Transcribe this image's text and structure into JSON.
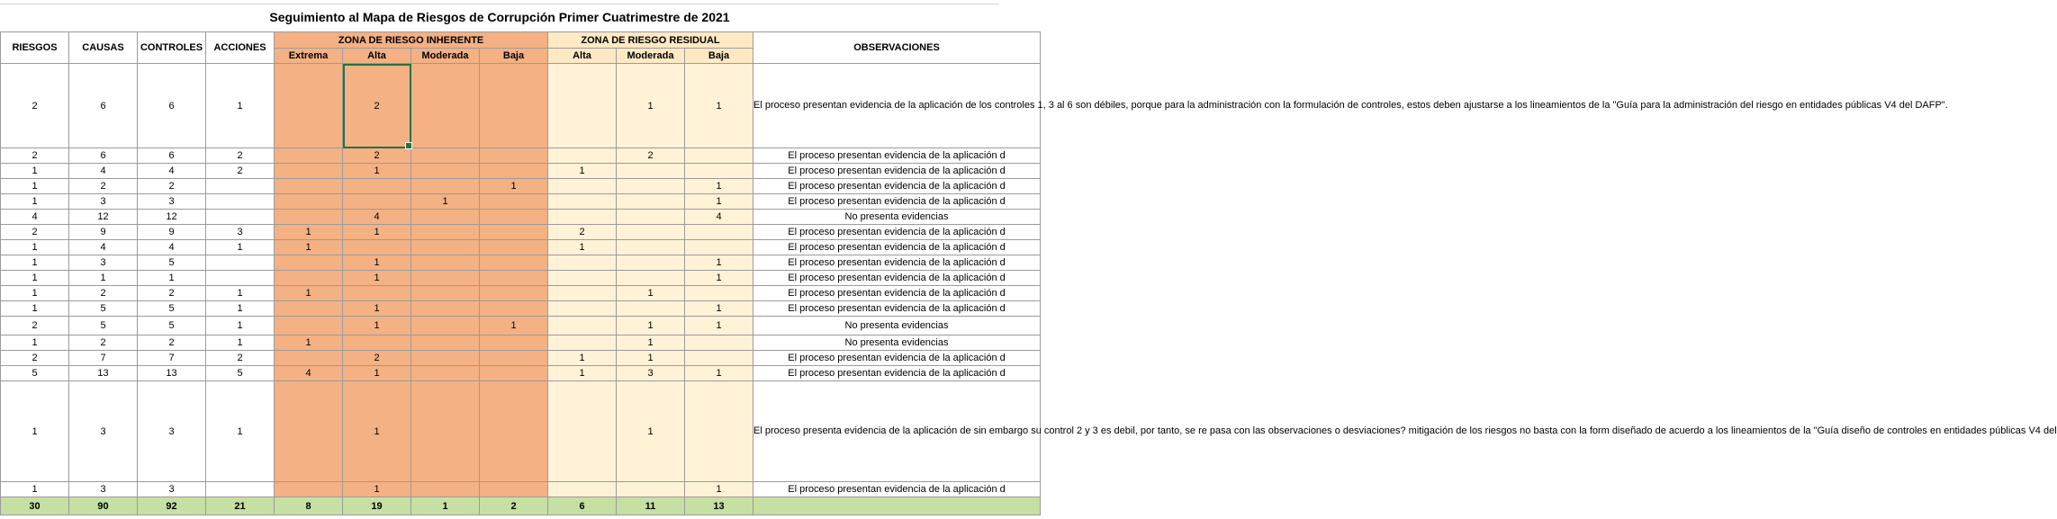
{
  "sheet": {
    "title": "Seguimiento al Mapa de Riesgos de Corrupción Primer Cuatrimestre de 2021",
    "headers": {
      "riesgos": "RIESGOS",
      "causas": "CAUSAS",
      "controles": "CONTROLES",
      "acciones": "ACCIONES",
      "zona_inherente": "ZONA DE RIESGO INHERENTE",
      "zona_residual": "ZONA DE RIESGO RESIDUAL",
      "observaciones": "OBSERVACIONES",
      "inh_extrema": "Extrema",
      "inh_alta": "Alta",
      "inh_moderada": "Moderada",
      "inh_baja": "Baja",
      "res_alta": "Alta",
      "res_moderada": "Moderada",
      "res_baja": "Baja"
    },
    "colors": {
      "inherent": "#f4b183",
      "residual": "#fff2d6",
      "totals": "#c6dfa3",
      "selection": "#217346"
    },
    "rows": [
      [
        "2",
        "6",
        "6",
        "1",
        "",
        "2",
        "",
        "",
        "",
        "1",
        "1",
        "El proceso presentan evidencia de la aplicación de los controles 1, 3 al 6 son débiles, porque para la administración con la formulación de controles, estos deben ajustarse a los lineamientos de la \"Guía para la administración del riesgo en entidades públicas V4 del DAFP\"."
      ],
      [
        "2",
        "6",
        "6",
        "2",
        "",
        "2",
        "",
        "",
        "",
        "2",
        "",
        "El proceso presentan evidencia de la aplicación d"
      ],
      [
        "1",
        "4",
        "4",
        "2",
        "",
        "1",
        "",
        "",
        "1",
        "",
        "",
        "El proceso presentan evidencia de la aplicación d"
      ],
      [
        "1",
        "2",
        "2",
        "",
        "",
        "",
        "",
        "1",
        "",
        "",
        "1",
        "El proceso presentan evidencia de la aplicación d"
      ],
      [
        "1",
        "3",
        "3",
        "",
        "",
        "",
        "1",
        "",
        "",
        "",
        "1",
        "El proceso presentan evidencia de la aplicación d"
      ],
      [
        "4",
        "12",
        "12",
        "",
        "",
        "4",
        "",
        "",
        "",
        "",
        "4",
        "No presenta evidencias"
      ],
      [
        "2",
        "9",
        "9",
        "3",
        "1",
        "1",
        "",
        "",
        "2",
        "",
        "",
        "El proceso presentan evidencia de la aplicación d"
      ],
      [
        "1",
        "4",
        "4",
        "1",
        "1",
        "",
        "",
        "",
        "1",
        "",
        "",
        "El proceso presentan evidencia de la aplicación d"
      ],
      [
        "1",
        "3",
        "5",
        "",
        "",
        "1",
        "",
        "",
        "",
        "",
        "1",
        "El proceso presentan evidencia de la aplicación d"
      ],
      [
        "1",
        "1",
        "1",
        "",
        "",
        "1",
        "",
        "",
        "",
        "",
        "1",
        "El proceso presentan evidencia de la aplicación d"
      ],
      [
        "1",
        "2",
        "2",
        "1",
        "1",
        "",
        "",
        "",
        "",
        "1",
        "",
        "El proceso presentan evidencia de la aplicación d"
      ],
      [
        "1",
        "5",
        "5",
        "1",
        "",
        "1",
        "",
        "",
        "",
        "",
        "1",
        "El proceso presentan evidencia de la aplicación d"
      ],
      [
        "2",
        "5",
        "5",
        "1",
        "",
        "1",
        "",
        "1",
        "",
        "1",
        "1",
        "No presenta evidencias"
      ],
      [
        "1",
        "2",
        "2",
        "1",
        "1",
        "",
        "",
        "",
        "",
        "1",
        "",
        "No presenta evidencias"
      ],
      [
        "2",
        "7",
        "7",
        "2",
        "",
        "2",
        "",
        "",
        "1",
        "1",
        "",
        "El proceso presentan evidencia de la aplicación d"
      ],
      [
        "5",
        "13",
        "13",
        "5",
        "4",
        "1",
        "",
        "",
        "1",
        "3",
        "1",
        "El proceso presentan evidencia de la aplicación d"
      ],
      [
        "1",
        "3",
        "3",
        "1",
        "",
        "1",
        "",
        "",
        "",
        "1",
        "",
        "El proceso presenta evidencia de la aplicación de sin embargo su control 2 y 3 es debil, por tanto, se re pasa con las observaciones o desviaciones? mitigación de los riesgos no basta con la form diseñado de acuerdo a los lineamientos de la \"Guía diseño de controles en entidades públicas V4 del"
      ],
      [
        "1",
        "3",
        "3",
        "",
        "",
        "1",
        "",
        "",
        "",
        "",
        "1",
        "El proceso presentan evidencia de la aplicación d"
      ]
    ],
    "totals": [
      "30",
      "90",
      "92",
      "21",
      "8",
      "19",
      "1",
      "2",
      "6",
      "11",
      "13",
      ""
    ]
  }
}
